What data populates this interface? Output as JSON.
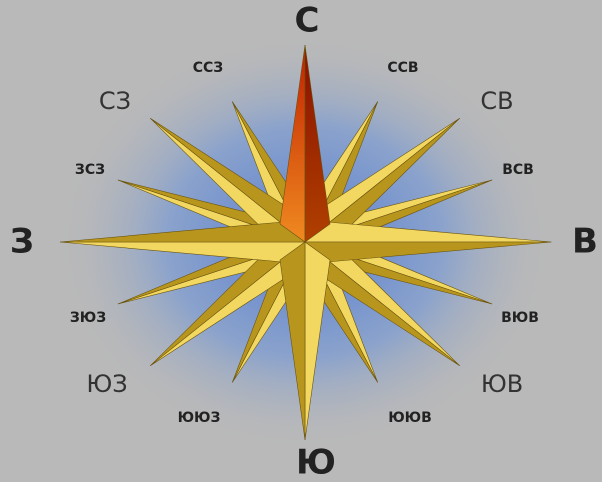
{
  "directions": [
    {
      "label": "С"
    },
    {
      "label": "ССВ"
    },
    {
      "label": "СВ"
    },
    {
      "label": "ВСВ"
    },
    {
      "label": "В"
    },
    {
      "label": "ВЮВ"
    },
    {
      "label": "ЮВ"
    },
    {
      "label": "ЮЮВ"
    },
    {
      "label": "Ю"
    },
    {
      "label": "ЮЮЗ"
    },
    {
      "label": "ЮЗ"
    },
    {
      "label": "ЗЮЗ"
    },
    {
      "label": "З"
    },
    {
      "label": "ЗСЗ"
    },
    {
      "label": "СЗ"
    },
    {
      "label": "ССЗ"
    }
  ]
}
